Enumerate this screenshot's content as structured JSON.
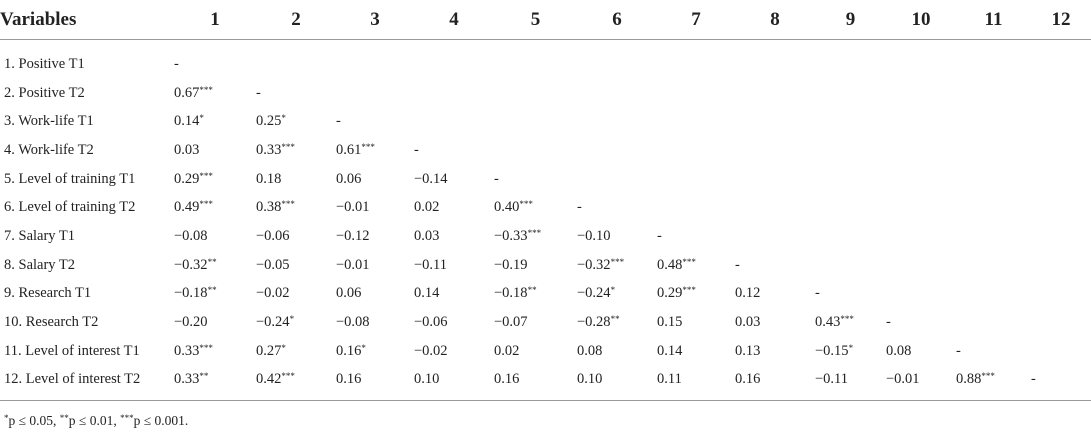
{
  "table": {
    "headers": [
      "Variables",
      "1",
      "2",
      "3",
      "4",
      "5",
      "6",
      "7",
      "8",
      "9",
      "10",
      "11",
      "12"
    ],
    "rows": [
      {
        "label": "1. Positive T1",
        "cells": [
          "-",
          "",
          "",
          "",
          "",
          "",
          "",
          "",
          "",
          "",
          "",
          ""
        ]
      },
      {
        "label": "2. Positive T2",
        "cells": [
          "0.67***",
          "-",
          "",
          "",
          "",
          "",
          "",
          "",
          "",
          "",
          "",
          ""
        ]
      },
      {
        "label": "3. Work-life T1",
        "cells": [
          "0.14*",
          "0.25*",
          "-",
          "",
          "",
          "",
          "",
          "",
          "",
          "",
          "",
          ""
        ]
      },
      {
        "label": "4. Work-life T2",
        "cells": [
          "0.03",
          "0.33***",
          "0.61***",
          "-",
          "",
          "",
          "",
          "",
          "",
          "",
          "",
          ""
        ]
      },
      {
        "label": "5. Level of training T1",
        "cells": [
          "0.29***",
          "0.18",
          "0.06",
          "−0.14",
          "-",
          "",
          "",
          "",
          "",
          "",
          "",
          ""
        ]
      },
      {
        "label": "6. Level of training T2",
        "cells": [
          "0.49***",
          "0.38***",
          "−0.01",
          "0.02",
          "0.40***",
          "-",
          "",
          "",
          "",
          "",
          "",
          ""
        ]
      },
      {
        "label": "7. Salary T1",
        "cells": [
          "−0.08",
          "−0.06",
          "−0.12",
          "0.03",
          "−0.33***",
          "−0.10",
          "-",
          "",
          "",
          "",
          "",
          ""
        ]
      },
      {
        "label": "8. Salary T2",
        "cells": [
          "−0.32**",
          "−0.05",
          "−0.01",
          "−0.11",
          "−0.19",
          "−0.32***",
          "0.48***",
          "-",
          "",
          "",
          "",
          ""
        ]
      },
      {
        "label": "9. Research T1",
        "cells": [
          "−0.18**",
          "−0.02",
          "0.06",
          "0.14",
          "−0.18**",
          "−0.24*",
          "0.29***",
          "0.12",
          "-",
          "",
          "",
          ""
        ]
      },
      {
        "label": "10. Research T2",
        "cells": [
          "−0.20",
          "−0.24*",
          "−0.08",
          "−0.06",
          "−0.07",
          "−0.28**",
          "0.15",
          "0.03",
          "0.43***",
          "-",
          "",
          ""
        ]
      },
      {
        "label": "11. Level of interest T1",
        "cells": [
          "0.33***",
          "0.27*",
          "0.16*",
          "−0.02",
          "0.02",
          "0.08",
          "0.14",
          "0.13",
          "−0.15*",
          "0.08",
          "-",
          ""
        ]
      },
      {
        "label": "12. Level of interest T2",
        "cells": [
          "0.33**",
          "0.42***",
          "0.16",
          "0.10",
          "0.16",
          "0.10",
          "0.11",
          "0.16",
          "−0.11",
          "−0.01",
          "0.88***",
          "-"
        ]
      }
    ]
  },
  "footnote": "*p ≤ 0.05, **p ≤ 0.01, ***p ≤ 0.001."
}
